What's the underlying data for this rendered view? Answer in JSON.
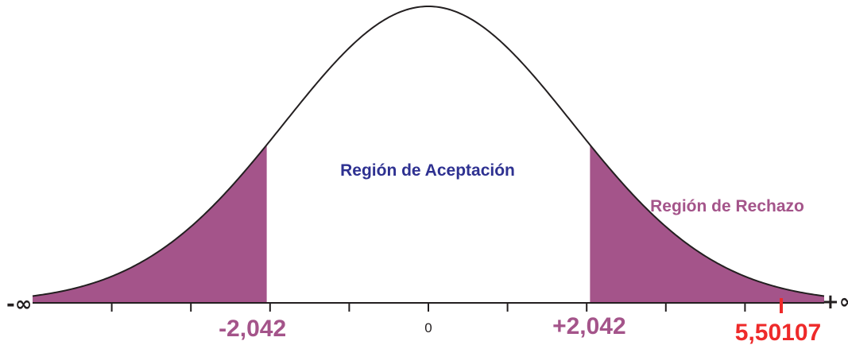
{
  "chart_data": {
    "type": "area",
    "distribution": "normal",
    "axis_labels": {
      "left_end": "-∞",
      "right_end": "+∞",
      "center": "0",
      "lower_critical": "-2,042",
      "upper_critical": "+2,042",
      "test_statistic": "5,50107"
    },
    "critical_values": [
      -2.042,
      2.042
    ],
    "test_statistic": 5.50107,
    "x_range": [
      -5.0,
      5.0
    ],
    "regions": {
      "acceptance_label": "Región de Aceptación",
      "rejection_label": "Región de Rechazo"
    },
    "colors": {
      "rejection_fill": "#a4548a",
      "rejection_text": "#a4548a",
      "acceptance_text": "#2e3191",
      "critical_text": "#a4548a",
      "statistic_text": "#ee2a2a",
      "curve": "#231f20",
      "axis": "#231f20"
    }
  }
}
